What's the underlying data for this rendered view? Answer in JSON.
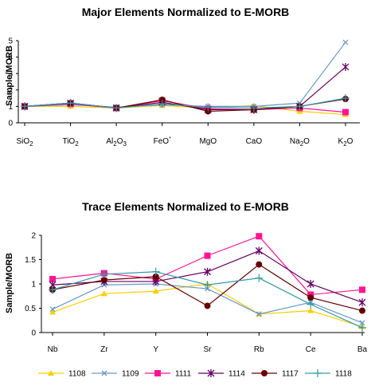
{
  "chart_data": [
    {
      "type": "line",
      "title": "Major Elements Normalized to E-MORB",
      "ylabel": "Sample/MORB",
      "ylim": [
        0,
        5
      ],
      "yticks": [
        "0",
        "1",
        "2",
        "3",
        "4",
        "5"
      ],
      "categories": [
        {
          "base": "SiO",
          "sub": "2",
          "sup": ""
        },
        {
          "base": "TiO",
          "sub": "2",
          "sup": ""
        },
        {
          "base": "Al",
          "sub": "2",
          "mid": "O",
          "sub2": "3",
          "sup": ""
        },
        {
          "base": "FeO",
          "sub": "",
          "sup": "*"
        },
        {
          "base": "MgO",
          "sub": "",
          "sup": ""
        },
        {
          "base": "CaO",
          "sub": "",
          "sup": ""
        },
        {
          "base": "Na",
          "sub": "2",
          "mid": "O",
          "sup": ""
        },
        {
          "base": "K",
          "sub": "2",
          "mid": "O",
          "sup": ""
        }
      ],
      "series": [
        {
          "name": "1108",
          "values": [
            1.0,
            1.0,
            0.9,
            1.05,
            0.9,
            1.05,
            0.7,
            0.5
          ]
        },
        {
          "name": "1109",
          "values": [
            1.0,
            1.1,
            0.95,
            1.1,
            1.0,
            1.0,
            1.2,
            4.9
          ]
        },
        {
          "name": "1111",
          "values": [
            1.0,
            1.15,
            0.9,
            1.35,
            0.85,
            0.8,
            0.9,
            0.65
          ]
        },
        {
          "name": "1114",
          "values": [
            1.0,
            1.2,
            0.9,
            1.25,
            0.8,
            0.8,
            1.0,
            3.4
          ]
        },
        {
          "name": "1117",
          "values": [
            1.0,
            1.2,
            0.9,
            1.4,
            0.7,
            0.8,
            1.0,
            1.45
          ]
        },
        {
          "name": "1118",
          "values": [
            1.0,
            1.2,
            0.9,
            1.15,
            0.95,
            0.9,
            1.0,
            1.5
          ]
        }
      ]
    },
    {
      "type": "line",
      "title": "Trace Elements Normalized to E-MORB",
      "ylabel": "Sample/MORB",
      "ylim": [
        0,
        2
      ],
      "yticks": [
        "0",
        "0.5",
        "1",
        "1.5",
        "2"
      ],
      "categories": [
        {
          "base": "Nb"
        },
        {
          "base": "Zr"
        },
        {
          "base": "Y"
        },
        {
          "base": "Sr"
        },
        {
          "base": "Rb"
        },
        {
          "base": "Ce"
        },
        {
          "base": "Ba"
        }
      ],
      "series": [
        {
          "name": "1108",
          "values": [
            0.42,
            0.8,
            0.85,
            1.0,
            0.38,
            0.45,
            0.12
          ]
        },
        {
          "name": "1109",
          "values": [
            0.48,
            0.98,
            1.0,
            0.9,
            0.38,
            0.62,
            0.2
          ]
        },
        {
          "name": "1111",
          "values": [
            1.1,
            1.22,
            1.1,
            1.58,
            1.98,
            0.78,
            0.88
          ]
        },
        {
          "name": "1114",
          "values": [
            0.98,
            1.05,
            1.05,
            1.25,
            1.68,
            1.0,
            0.62
          ]
        },
        {
          "name": "1117",
          "values": [
            0.88,
            1.08,
            1.15,
            0.55,
            1.4,
            0.72,
            0.45
          ]
        },
        {
          "name": "1118",
          "values": [
            0.88,
            1.2,
            1.25,
            0.98,
            1.12,
            0.58,
            0.1
          ]
        }
      ]
    }
  ],
  "legend": [
    {
      "name": "1108",
      "color": "#FFCC00",
      "marker": "triangle"
    },
    {
      "name": "1109",
      "color": "#6699CC",
      "marker": "x"
    },
    {
      "name": "1111",
      "color": "#FF1493",
      "marker": "square"
    },
    {
      "name": "1114",
      "color": "#660066",
      "marker": "star"
    },
    {
      "name": "1117",
      "color": "#660000",
      "marker": "circle"
    },
    {
      "name": "1118",
      "color": "#3399AA",
      "marker": "plus"
    }
  ],
  "colors": {
    "1108": "#FFCC00",
    "1109": "#6699CC",
    "1111": "#FF1493",
    "1114": "#660066",
    "1117": "#660000",
    "1118": "#3399AA",
    "axis": "#000000"
  }
}
